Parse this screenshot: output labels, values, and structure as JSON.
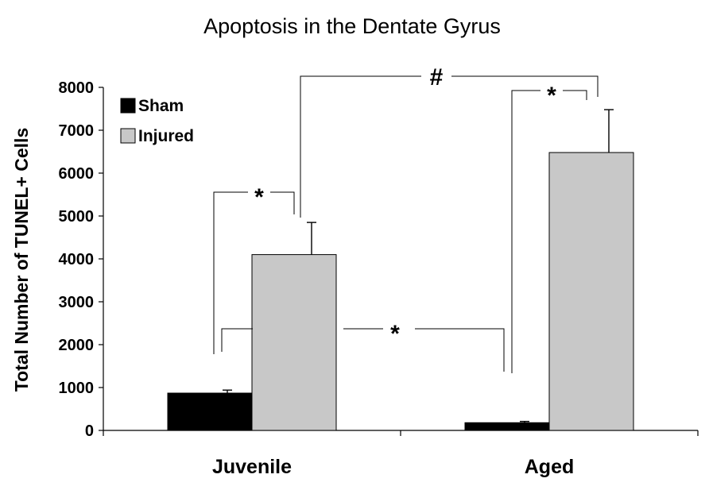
{
  "chart_data": {
    "type": "bar",
    "title": "Apoptosis in the Dentate Gyrus",
    "ylabel": "Total Number of TUNEL+ Cells",
    "xlabel": "",
    "ylim": [
      0,
      8000
    ],
    "yticks": [
      0,
      1000,
      2000,
      3000,
      4000,
      5000,
      6000,
      7000,
      8000
    ],
    "categories": [
      "Juvenile",
      "Aged"
    ],
    "series": [
      {
        "name": "Sham",
        "color": "#000000",
        "values": [
          870,
          180
        ],
        "errors": [
          70,
          30
        ]
      },
      {
        "name": "Injured",
        "color": "#c8c8c8",
        "values": [
          4100,
          6480
        ],
        "errors": [
          750,
          1000
        ]
      }
    ],
    "legend_position": "top-left",
    "grid": false,
    "annotations": [
      {
        "symbol": "*",
        "between": "Juvenile Sham vs Juvenile Injured"
      },
      {
        "symbol": "*",
        "between": "Aged Sham vs Aged Injured"
      },
      {
        "symbol": "*",
        "between": "Juvenile Injured vs Aged Sham"
      },
      {
        "symbol": "#",
        "between": "Juvenile Injured vs Aged Injured"
      }
    ]
  }
}
